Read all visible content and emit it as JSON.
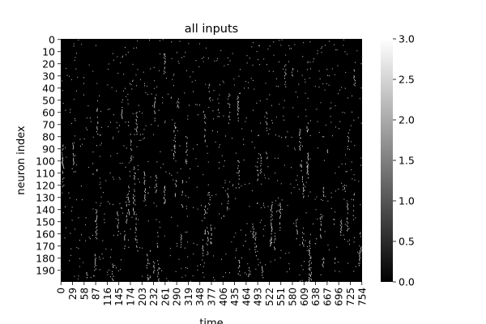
{
  "chart_data": {
    "type": "heatmap",
    "title": "all inputs",
    "xlabel": "time",
    "ylabel": "neuron index",
    "n_rows": 200,
    "n_cols": 755,
    "x_ticks": [
      "0",
      "29",
      "58",
      "87",
      "116",
      "145",
      "174",
      "203",
      "232",
      "261",
      "290",
      "319",
      "348",
      "377",
      "406",
      "435",
      "464",
      "493",
      "522",
      "551",
      "580",
      "609",
      "638",
      "667",
      "696",
      "725",
      "754"
    ],
    "y_ticks": [
      "0",
      "10",
      "20",
      "30",
      "40",
      "50",
      "60",
      "70",
      "80",
      "90",
      "100",
      "110",
      "120",
      "130",
      "140",
      "150",
      "160",
      "170",
      "180",
      "190"
    ],
    "colorbar": {
      "min": 0.0,
      "max": 3.0,
      "ticks": [
        "0.0",
        "0.5",
        "1.0",
        "1.5",
        "2.0",
        "2.5",
        "3.0"
      ],
      "colormap": "gray"
    },
    "background_value": 0.0,
    "colors": {
      "low": "#000000",
      "high": "#ffffff"
    }
  }
}
